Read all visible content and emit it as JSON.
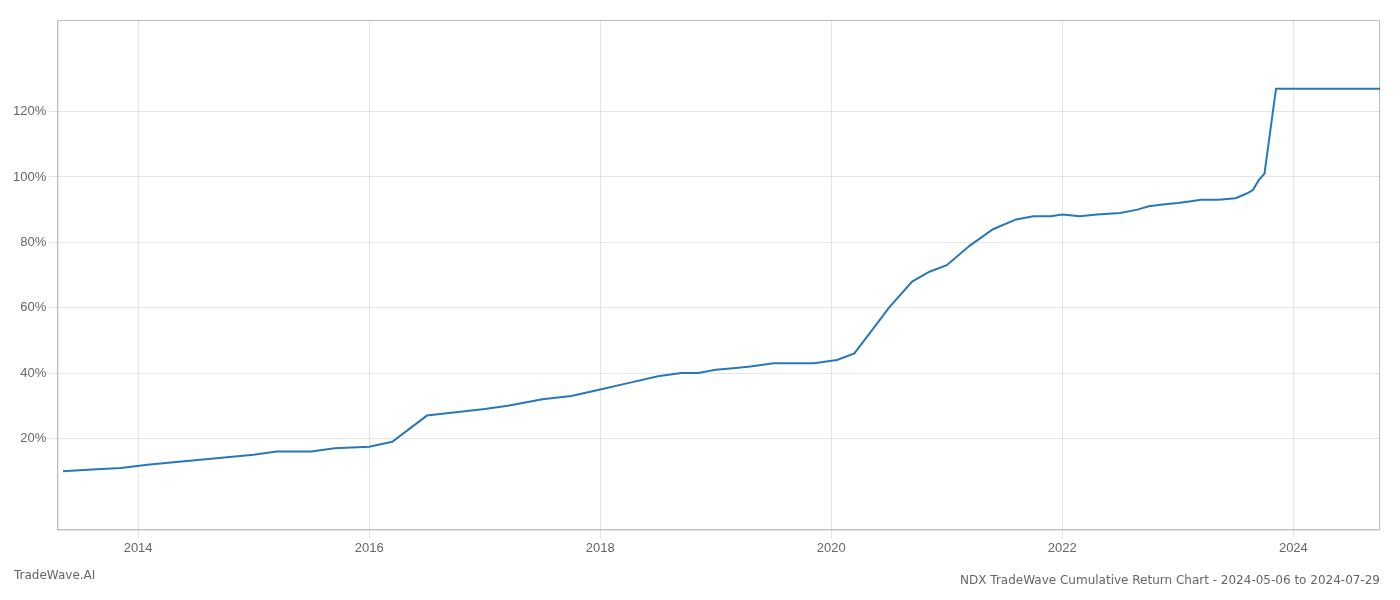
{
  "chart_data": {
    "type": "line",
    "title": "NDX TradeWave Cumulative Return Chart - 2024-05-06 to 2024-07-29",
    "annotations": [
      "TradeWave.AI"
    ],
    "color": "#2878b8",
    "grid": true,
    "xlim": [
      2013.3,
      2024.75
    ],
    "xticks": [
      2014,
      2016,
      2018,
      2020,
      2022,
      2024
    ],
    "ylim": [
      -8,
      148
    ],
    "yticks": [
      {
        "value": 20,
        "label": "20%"
      },
      {
        "value": 40,
        "label": "40%"
      },
      {
        "value": 60,
        "label": "60%"
      },
      {
        "value": 80,
        "label": "80%"
      },
      {
        "value": 100,
        "label": "100%"
      },
      {
        "value": 120,
        "label": "120%"
      }
    ],
    "x": [
      2013.35,
      2013.6,
      2013.85,
      2014.1,
      2014.4,
      2014.7,
      2015.0,
      2015.2,
      2015.5,
      2015.7,
      2016.0,
      2016.2,
      2016.5,
      2016.75,
      2017.0,
      2017.2,
      2017.5,
      2017.75,
      2018.0,
      2018.25,
      2018.5,
      2018.7,
      2018.85,
      2019.0,
      2019.15,
      2019.3,
      2019.5,
      2019.65,
      2019.85,
      2020.05,
      2020.2,
      2020.35,
      2020.5,
      2020.7,
      2020.85,
      2021.0,
      2021.2,
      2021.4,
      2021.6,
      2021.75,
      2021.9,
      2022.0,
      2022.15,
      2022.3,
      2022.5,
      2022.65,
      2022.75,
      2022.85,
      2023.0,
      2023.1,
      2023.2,
      2023.35,
      2023.5,
      2023.6,
      2023.65,
      2023.7,
      2023.75,
      2023.85,
      2023.95,
      2024.0,
      2024.05,
      2024.1,
      2024.15,
      2024.2,
      2024.35,
      2024.5,
      2024.65,
      2024.75
    ],
    "values": [
      10,
      10.5,
      11,
      12,
      13,
      14,
      15,
      16,
      16,
      17,
      17.5,
      19,
      27,
      28,
      29,
      30,
      32,
      33,
      35,
      37,
      39,
      40,
      40,
      41,
      41.5,
      42,
      43,
      43,
      43,
      44,
      46,
      53,
      60,
      68,
      71,
      73,
      79,
      84,
      87,
      88,
      88,
      88.5,
      88,
      88.5,
      89,
      90,
      91,
      91.5,
      92,
      92.5,
      93,
      93,
      93.5,
      95,
      96,
      99,
      101,
      127,
      127,
      127,
      127,
      127,
      127,
      127,
      127,
      127,
      127,
      127
    ]
  }
}
